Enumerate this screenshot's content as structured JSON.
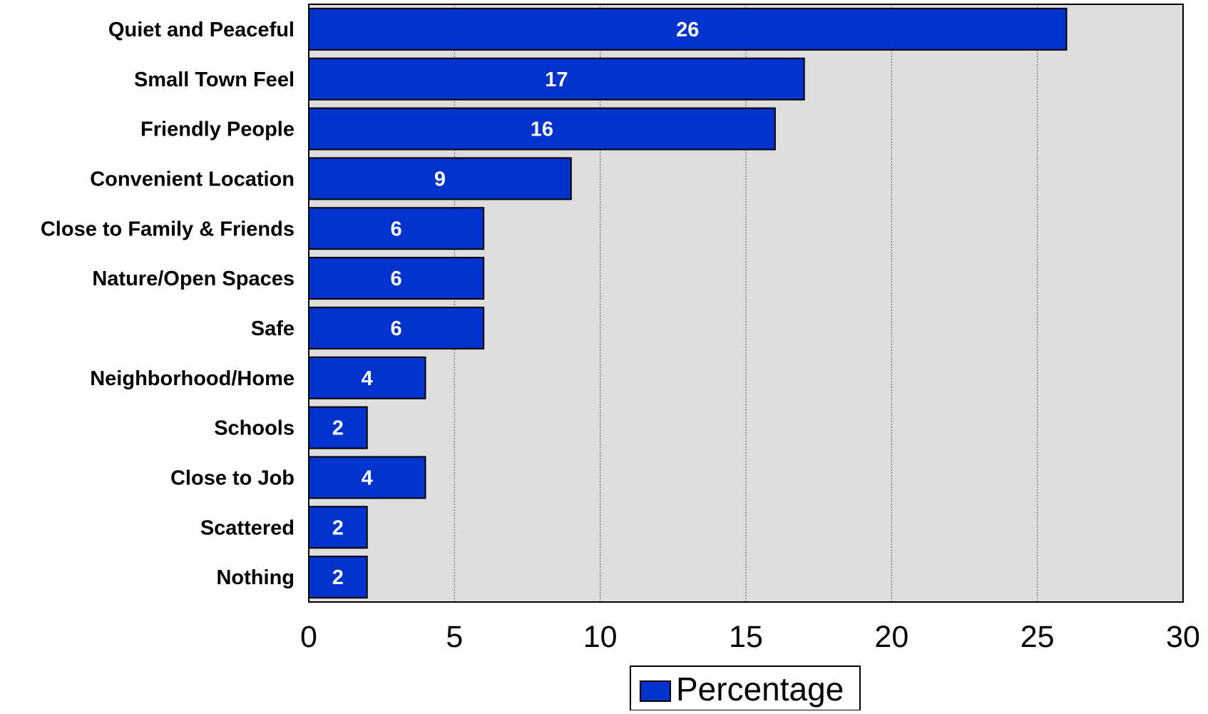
{
  "chart_data": {
    "type": "bar",
    "orientation": "horizontal",
    "categories": [
      "Quiet and Peaceful",
      "Small Town Feel",
      "Friendly People",
      "Convenient Location",
      "Close to Family & Friends",
      "Nature/Open Spaces",
      "Safe",
      "Neighborhood/Home",
      "Schools",
      "Close to Job",
      "Scattered",
      "Nothing"
    ],
    "series": [
      {
        "name": "Percentage",
        "values": [
          26,
          17,
          16,
          9,
          6,
          6,
          6,
          4,
          2,
          4,
          2,
          2
        ],
        "color": "#0033CC"
      }
    ],
    "xlim": [
      0,
      30
    ],
    "xticks": [
      0,
      5,
      10,
      15,
      20,
      25,
      30
    ],
    "grid": "vertical dotted",
    "plot_background": "#DDDDDD",
    "legend_position": "bottom-center",
    "data_labels": true
  }
}
